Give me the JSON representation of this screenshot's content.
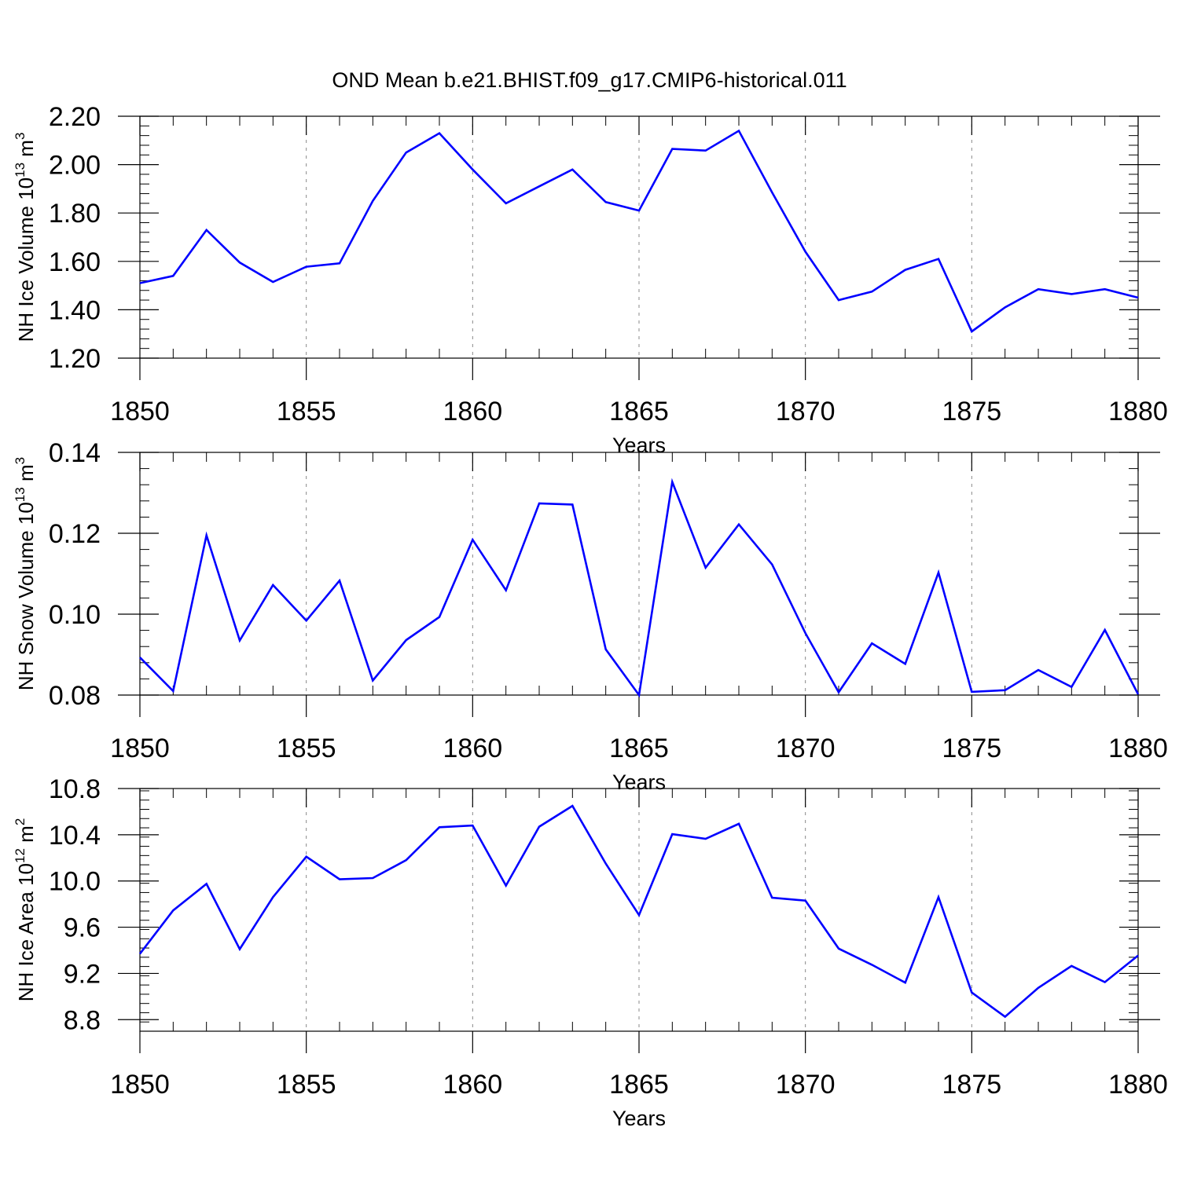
{
  "title": "OND Mean b.e21.BHIST.f09_g17.CMIP6-historical.011",
  "colors": {
    "line": "#0000ff",
    "axis": "#000000",
    "grid": "#888888"
  },
  "chart_data": [
    {
      "type": "line",
      "ylabel_main": "NH Ice Volume 10",
      "ylabel_exp": "13",
      "ylabel_unit": " m",
      "ylabel_unit_exp": "3",
      "xlabel": "Years",
      "xlim": [
        1850,
        1880
      ],
      "ylim": [
        1.2,
        2.2
      ],
      "yticks": [
        "1.20",
        "1.40",
        "1.60",
        "1.80",
        "2.00",
        "2.20"
      ],
      "ytick_values": [
        1.2,
        1.4,
        1.6,
        1.8,
        2.0,
        2.2
      ],
      "xticks": [
        "1850",
        "1855",
        "1860",
        "1865",
        "1870",
        "1875",
        "1880"
      ],
      "xtick_values": [
        1850,
        1855,
        1860,
        1865,
        1870,
        1875,
        1880
      ],
      "x": [
        1850,
        1851,
        1852,
        1853,
        1854,
        1855,
        1856,
        1857,
        1858,
        1859,
        1860,
        1861,
        1862,
        1863,
        1864,
        1865,
        1866,
        1867,
        1868,
        1869,
        1870,
        1871,
        1872,
        1873,
        1874,
        1875,
        1876,
        1877,
        1878,
        1879,
        1880
      ],
      "values": [
        1.51,
        1.54,
        1.73,
        1.595,
        1.515,
        1.578,
        1.592,
        1.85,
        2.05,
        2.13,
        1.98,
        1.84,
        1.91,
        1.98,
        1.845,
        1.81,
        2.065,
        2.058,
        2.14,
        1.885,
        1.64,
        1.44,
        1.475,
        1.565,
        1.61,
        1.31,
        1.41,
        1.485,
        1.465,
        1.485,
        1.45
      ],
      "grid": "vertical dashed at major x ticks"
    },
    {
      "type": "line",
      "ylabel_main": "NH Snow Volume 10",
      "ylabel_exp": "13",
      "ylabel_unit": " m",
      "ylabel_unit_exp": "3",
      "xlabel": "Years",
      "xlim": [
        1850,
        1880
      ],
      "ylim": [
        0.08,
        0.14
      ],
      "yticks": [
        "0.08",
        "0.10",
        "0.12",
        "0.14"
      ],
      "ytick_values": [
        0.08,
        0.1,
        0.12,
        0.14
      ],
      "xticks": [
        "1850",
        "1855",
        "1860",
        "1865",
        "1870",
        "1875",
        "1880"
      ],
      "xtick_values": [
        1850,
        1855,
        1860,
        1865,
        1870,
        1875,
        1880
      ],
      "x": [
        1850,
        1851,
        1852,
        1853,
        1854,
        1855,
        1856,
        1857,
        1858,
        1859,
        1860,
        1861,
        1862,
        1863,
        1864,
        1865,
        1866,
        1867,
        1868,
        1869,
        1870,
        1871,
        1872,
        1873,
        1874,
        1875,
        1876,
        1877,
        1878,
        1879,
        1880
      ],
      "values": [
        0.0893,
        0.081,
        0.1195,
        0.0935,
        0.1072,
        0.0984,
        0.1083,
        0.0836,
        0.0936,
        0.0993,
        0.1184,
        0.1059,
        0.1274,
        0.1271,
        0.0913,
        0.08,
        0.1327,
        0.1115,
        0.1222,
        0.1123,
        0.0953,
        0.0807,
        0.0928,
        0.0877,
        0.1103,
        0.0808,
        0.0812,
        0.0862,
        0.082,
        0.0961,
        0.0802
      ],
      "grid": "vertical dashed at major x ticks"
    },
    {
      "type": "line",
      "ylabel_main": "NH Ice Area 10",
      "ylabel_exp": "12",
      "ylabel_unit": " m",
      "ylabel_unit_exp": "2",
      "xlabel": "Years",
      "xlim": [
        1850,
        1880
      ],
      "ylim": [
        8.7,
        10.8
      ],
      "yticks": [
        "8.8",
        "9.2",
        "9.6",
        "10.0",
        "10.4",
        "10.8"
      ],
      "ytick_values": [
        8.8,
        9.2,
        9.6,
        10.0,
        10.4,
        10.8
      ],
      "xticks": [
        "1850",
        "1855",
        "1860",
        "1865",
        "1870",
        "1875",
        "1880"
      ],
      "xtick_values": [
        1850,
        1855,
        1860,
        1865,
        1870,
        1875,
        1880
      ],
      "x": [
        1850,
        1851,
        1852,
        1853,
        1854,
        1855,
        1856,
        1857,
        1858,
        1859,
        1860,
        1861,
        1862,
        1863,
        1864,
        1865,
        1866,
        1867,
        1868,
        1869,
        1870,
        1871,
        1872,
        1873,
        1874,
        1875,
        1876,
        1877,
        1878,
        1879,
        1880
      ],
      "values": [
        9.37,
        9.745,
        9.975,
        9.41,
        9.86,
        10.21,
        10.015,
        10.025,
        10.18,
        10.465,
        10.48,
        9.96,
        10.47,
        10.65,
        10.15,
        9.705,
        10.405,
        10.365,
        10.495,
        9.855,
        9.83,
        9.415,
        9.275,
        9.12,
        9.86,
        9.035,
        8.825,
        9.075,
        9.265,
        9.125,
        9.355
      ],
      "grid": "vertical dashed at major x ticks"
    }
  ]
}
